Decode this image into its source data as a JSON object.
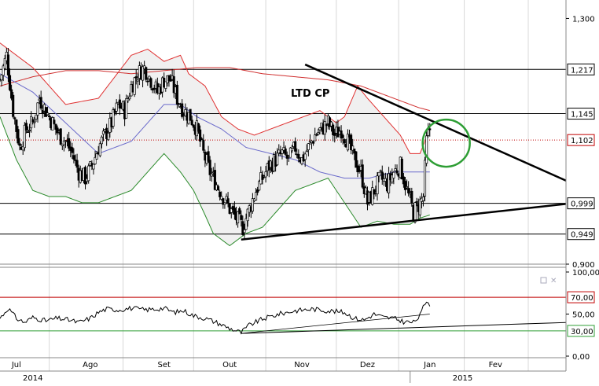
{
  "chart_data": [
    {
      "type": "candlestick",
      "title": "LTD CP",
      "xlabel": "",
      "ylabel": "",
      "ylim": [
        0.9,
        1.33
      ],
      "y_ticks": [
        {
          "value": 1.3,
          "label": "1,300"
        },
        {
          "value": 0.9,
          "label": "0,900"
        }
      ],
      "horizontal_levels": [
        {
          "value": 1.217,
          "label": "1,217",
          "color": "#000000"
        },
        {
          "value": 1.145,
          "label": "1,145",
          "color": "#000000"
        },
        {
          "value": 1.102,
          "label": "1,102",
          "color": "#c00000",
          "style": "dotted"
        },
        {
          "value": 0.999,
          "label": "0,999",
          "color": "#000000"
        },
        {
          "value": 0.949,
          "label": "0,949",
          "color": "#000000"
        }
      ],
      "overlays": [
        "bollinger_upper",
        "bollinger_lower",
        "moving_average_short",
        "moving_average_long"
      ],
      "trendlines": [
        {
          "name": "resistance",
          "from": [
            186,
            1.225
          ],
          "to": [
            345,
            1.036
          ]
        },
        {
          "name": "support",
          "from": [
            147,
            0.94
          ],
          "to": [
            345,
            0.998
          ]
        }
      ],
      "highlight": {
        "shape": "circle",
        "color": "#2e9e35",
        "at": [
          272,
          1.097
        ]
      },
      "month_labels": [
        {
          "label": "Jul",
          "t": 10
        },
        {
          "label": "Ago",
          "t": 55
        },
        {
          "label": "Set",
          "t": 100
        },
        {
          "label": "Out",
          "t": 140
        },
        {
          "label": "Nov",
          "t": 184
        },
        {
          "label": "Dez",
          "t": 224
        },
        {
          "label": "Jan",
          "t": 262
        },
        {
          "label": "Fev",
          "t": 302
        }
      ],
      "year_labels": [
        {
          "label": "2014",
          "t": 20
        },
        {
          "label": "2015",
          "t": 282
        }
      ],
      "x_range": [
        0,
        345
      ],
      "last_bar_t": 262,
      "ohlc_anchors": [
        [
          0,
          1.2
        ],
        [
          4,
          1.24
        ],
        [
          8,
          1.15
        ],
        [
          12,
          1.09
        ],
        [
          16,
          1.12
        ],
        [
          20,
          1.13
        ],
        [
          24,
          1.17
        ],
        [
          28,
          1.15
        ],
        [
          32,
          1.13
        ],
        [
          36,
          1.11
        ],
        [
          40,
          1.1
        ],
        [
          44,
          1.08
        ],
        [
          48,
          1.05
        ],
        [
          52,
          1.04
        ],
        [
          56,
          1.06
        ],
        [
          60,
          1.09
        ],
        [
          64,
          1.11
        ],
        [
          68,
          1.13
        ],
        [
          72,
          1.16
        ],
        [
          76,
          1.15
        ],
        [
          80,
          1.19
        ],
        [
          84,
          1.21
        ],
        [
          88,
          1.22
        ],
        [
          92,
          1.2
        ],
        [
          96,
          1.18
        ],
        [
          100,
          1.2
        ],
        [
          104,
          1.2
        ],
        [
          108,
          1.17
        ],
        [
          112,
          1.15
        ],
        [
          116,
          1.14
        ],
        [
          120,
          1.12
        ],
        [
          124,
          1.08
        ],
        [
          128,
          1.05
        ],
        [
          132,
          1.03
        ],
        [
          136,
          1.01
        ],
        [
          140,
          0.99
        ],
        [
          144,
          0.975
        ],
        [
          148,
          0.96
        ],
        [
          152,
          0.99
        ],
        [
          156,
          1.02
        ],
        [
          160,
          1.04
        ],
        [
          164,
          1.06
        ],
        [
          168,
          1.07
        ],
        [
          172,
          1.08
        ],
        [
          176,
          1.07
        ],
        [
          180,
          1.09
        ],
        [
          184,
          1.07
        ],
        [
          188,
          1.09
        ],
        [
          192,
          1.11
        ],
        [
          196,
          1.12
        ],
        [
          200,
          1.13
        ],
        [
          204,
          1.11
        ],
        [
          208,
          1.12
        ],
        [
          212,
          1.1
        ],
        [
          216,
          1.07
        ],
        [
          220,
          1.05
        ],
        [
          224,
          1.0
        ],
        [
          228,
          1.02
        ],
        [
          232,
          1.04
        ],
        [
          236,
          1.03
        ],
        [
          240,
          1.05
        ],
        [
          244,
          1.06
        ],
        [
          248,
          1.02
        ],
        [
          252,
          0.985
        ],
        [
          256,
          1.0
        ],
        [
          258,
          1.01
        ],
        [
          260,
          1.1
        ],
        [
          262,
          1.12
        ]
      ],
      "bb_upper": [
        [
          0,
          1.26
        ],
        [
          20,
          1.22
        ],
        [
          40,
          1.16
        ],
        [
          60,
          1.17
        ],
        [
          80,
          1.24
        ],
        [
          90,
          1.25
        ],
        [
          100,
          1.23
        ],
        [
          110,
          1.24
        ],
        [
          115,
          1.21
        ],
        [
          125,
          1.19
        ],
        [
          135,
          1.14
        ],
        [
          145,
          1.12
        ],
        [
          155,
          1.11
        ],
        [
          165,
          1.12
        ],
        [
          175,
          1.13
        ],
        [
          185,
          1.14
        ],
        [
          195,
          1.15
        ],
        [
          205,
          1.13
        ],
        [
          210,
          1.14
        ],
        [
          218,
          1.19
        ],
        [
          224,
          1.17
        ],
        [
          234,
          1.14
        ],
        [
          244,
          1.11
        ],
        [
          250,
          1.08
        ],
        [
          256,
          1.08
        ],
        [
          262,
          1.12
        ]
      ],
      "bb_lower": [
        [
          0,
          1.14
        ],
        [
          10,
          1.07
        ],
        [
          20,
          1.02
        ],
        [
          30,
          1.01
        ],
        [
          40,
          1.01
        ],
        [
          50,
          1.0
        ],
        [
          60,
          1.0
        ],
        [
          70,
          1.01
        ],
        [
          80,
          1.02
        ],
        [
          90,
          1.05
        ],
        [
          100,
          1.08
        ],
        [
          110,
          1.05
        ],
        [
          118,
          1.02
        ],
        [
          125,
          0.98
        ],
        [
          130,
          0.95
        ],
        [
          140,
          0.93
        ],
        [
          150,
          0.95
        ],
        [
          160,
          0.96
        ],
        [
          170,
          0.99
        ],
        [
          180,
          1.02
        ],
        [
          190,
          1.03
        ],
        [
          200,
          1.04
        ],
        [
          210,
          1.0
        ],
        [
          220,
          0.96
        ],
        [
          230,
          0.97
        ],
        [
          240,
          0.965
        ],
        [
          250,
          0.965
        ],
        [
          256,
          0.975
        ],
        [
          262,
          0.98
        ]
      ],
      "ma_short": [
        [
          0,
          1.21
        ],
        [
          20,
          1.18
        ],
        [
          40,
          1.13
        ],
        [
          60,
          1.08
        ],
        [
          80,
          1.1
        ],
        [
          100,
          1.16
        ],
        [
          110,
          1.16
        ],
        [
          120,
          1.14
        ],
        [
          135,
          1.12
        ],
        [
          150,
          1.09
        ],
        [
          165,
          1.08
        ],
        [
          180,
          1.07
        ],
        [
          195,
          1.05
        ],
        [
          210,
          1.04
        ],
        [
          225,
          1.04
        ],
        [
          240,
          1.05
        ],
        [
          252,
          1.05
        ],
        [
          262,
          1.05
        ]
      ],
      "ma_long": [
        [
          0,
          1.19
        ],
        [
          20,
          1.205
        ],
        [
          40,
          1.215
        ],
        [
          60,
          1.215
        ],
        [
          80,
          1.21
        ],
        [
          100,
          1.215
        ],
        [
          120,
          1.22
        ],
        [
          140,
          1.22
        ],
        [
          160,
          1.21
        ],
        [
          180,
          1.205
        ],
        [
          200,
          1.2
        ],
        [
          220,
          1.19
        ],
        [
          240,
          1.17
        ],
        [
          255,
          1.155
        ],
        [
          262,
          1.15
        ]
      ]
    },
    {
      "type": "line",
      "title": "",
      "ylim": [
        0,
        100
      ],
      "y_ticks": [
        {
          "value": 100,
          "label": "100,00"
        },
        {
          "value": 50,
          "label": "50,00"
        },
        {
          "value": 0,
          "label": "0,00"
        }
      ],
      "horizontal_levels": [
        {
          "value": 70,
          "label": "70,00",
          "color": "#c00000"
        },
        {
          "value": 30,
          "label": "30,00",
          "color": "#2e9e35"
        }
      ],
      "trendline": {
        "from": [
          147,
          27
        ],
        "to": [
          345,
          40
        ]
      },
      "trendline2": {
        "from": [
          147,
          27
        ],
        "to": [
          262,
          50
        ]
      },
      "rsi_anchors": [
        [
          0,
          45
        ],
        [
          5,
          57
        ],
        [
          10,
          45
        ],
        [
          15,
          40
        ],
        [
          20,
          46
        ],
        [
          28,
          42
        ],
        [
          35,
          45
        ],
        [
          42,
          43
        ],
        [
          48,
          40
        ],
        [
          55,
          45
        ],
        [
          60,
          52
        ],
        [
          65,
          56
        ],
        [
          72,
          55
        ],
        [
          80,
          57
        ],
        [
          88,
          55
        ],
        [
          95,
          56
        ],
        [
          100,
          57
        ],
        [
          106,
          52
        ],
        [
          112,
          54
        ],
        [
          118,
          48
        ],
        [
          125,
          45
        ],
        [
          132,
          40
        ],
        [
          140,
          33
        ],
        [
          147,
          28
        ],
        [
          152,
          37
        ],
        [
          160,
          44
        ],
        [
          170,
          50
        ],
        [
          180,
          54
        ],
        [
          190,
          56
        ],
        [
          200,
          54
        ],
        [
          210,
          52
        ],
        [
          216,
          45
        ],
        [
          222,
          43
        ],
        [
          228,
          50
        ],
        [
          234,
          46
        ],
        [
          240,
          45
        ],
        [
          246,
          41
        ],
        [
          252,
          40
        ],
        [
          256,
          48
        ],
        [
          258,
          58
        ],
        [
          260,
          66
        ],
        [
          262,
          62
        ]
      ]
    }
  ]
}
